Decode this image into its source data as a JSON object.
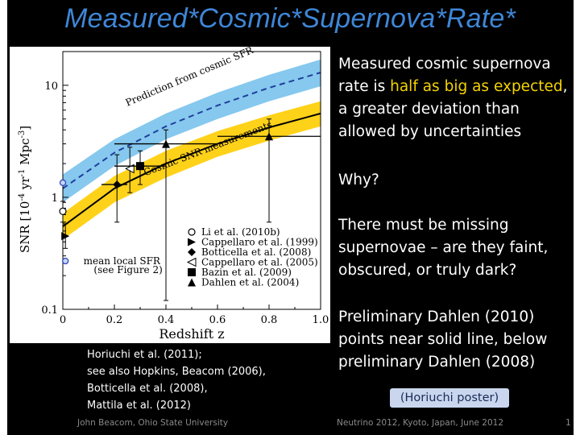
{
  "slide": {
    "title": "Measured*Cosmic*Supernova*Rate*",
    "paragraphs": {
      "p1_before": "Measured cosmic supernova rate is ",
      "p1_highlight": "half as big as expected",
      "p1_after": ", a greater deviation than allowed by uncertainties",
      "p2": "Why?",
      "p3": "There must be missing supernovae – are they faint, obscured, or truly dark?",
      "p4": "Preliminary Dahlen (2010) points near solid line, below preliminary Dahlen (2008)"
    },
    "poster_badge": "(Horiuchi poster)",
    "references": [
      "Horiuchi et al. (2011);",
      "see also Hopkins, Beacom (2006),",
      "Botticella et al. (2008),",
      "Mattila et al. (2012)"
    ],
    "footer": {
      "author": "John Beacom, Ohio State University",
      "event": "Neutrino 2012, Kyoto, Japan, June 2012",
      "page": "1"
    },
    "colors": {
      "title": "#3f86d6",
      "highlight": "#f5d300",
      "band_prediction": "#86c8ee",
      "band_measurement": "#ffd21a",
      "dashed_line": "#1f3e9c"
    }
  },
  "chart_data": {
    "type": "scatter",
    "xlabel": "Redshift z",
    "ylabel": "SNR [10^-4 yr^-1 Mpc^-3]",
    "ylabel_parts": {
      "a": "SNR [10",
      "b": "-4",
      "c": " yr",
      "d": "-1",
      "e": " Mpc",
      "f": "-3",
      "g": "]"
    },
    "xlim": [
      0,
      1.0
    ],
    "ylim": [
      0.1,
      20
    ],
    "yscale": "log",
    "x_ticks": [
      "0",
      "0.2",
      "0.4",
      "0.6",
      "0.8",
      "1.0"
    ],
    "y_ticks": [
      "0.1",
      "1",
      "10"
    ],
    "annotations": {
      "prediction": "Prediction from cosmic SFR",
      "measurement": "Cosmic SNR measurements",
      "local_sfr_1": "mean local SFR",
      "local_sfr_2": "(see Figure 2)"
    },
    "legend_position": "bottom-right",
    "legend": [
      {
        "name": "Li et al. (2010b)",
        "marker": "open-circle"
      },
      {
        "name": "Cappellaro et al. (1999)",
        "marker": "filled-triangle-right"
      },
      {
        "name": "Botticella et al. (2008)",
        "marker": "filled-diamond"
      },
      {
        "name": "Cappellaro et al. (2005)",
        "marker": "open-triangle-left"
      },
      {
        "name": "Bazin et al. (2009)",
        "marker": "filled-square"
      },
      {
        "name": "Dahlen et al. (2004)",
        "marker": "filled-triangle-up"
      }
    ],
    "prediction_band": {
      "x": [
        0,
        0.2,
        0.4,
        0.6,
        0.8,
        1.0
      ],
      "center": [
        1.2,
        2.5,
        4.3,
        6.6,
        9.5,
        13.0
      ],
      "lower": [
        0.9,
        1.9,
        3.3,
        5.0,
        7.2,
        9.8
      ],
      "upper": [
        1.6,
        3.3,
        5.6,
        8.6,
        12.4,
        17.0
      ]
    },
    "measurement_band": {
      "x": [
        0,
        0.2,
        0.4,
        0.6,
        0.8,
        1.0
      ],
      "center": [
        0.55,
        1.2,
        2.0,
        3.0,
        4.2,
        5.6
      ],
      "lower": [
        0.42,
        0.9,
        1.5,
        2.3,
        3.2,
        4.3
      ],
      "upper": [
        0.72,
        1.55,
        2.6,
        3.9,
        5.4,
        7.2
      ]
    },
    "points": [
      {
        "series": "Li et al. (2010b)",
        "marker": "open-circle",
        "x": 0.0,
        "y": 0.75,
        "ylo": 0.6,
        "yhi": 0.92
      },
      {
        "series": "Cappellaro et al. (1999)",
        "marker": "filled-triangle-right",
        "x": 0.01,
        "y": 0.45,
        "ylo": 0.35,
        "yhi": 0.58
      },
      {
        "series": "Botticella et al. (2008)",
        "marker": "filled-diamond",
        "x": 0.21,
        "y": 1.3,
        "ylo": 0.6,
        "yhi": 2.4,
        "xlo": 0.15,
        "xhi": 0.25
      },
      {
        "series": "Cappellaro et al. (2005)",
        "marker": "open-triangle-left",
        "x": 0.26,
        "y": 1.8,
        "ylo": 1.1,
        "yhi": 2.8
      },
      {
        "series": "Bazin et al. (2009)",
        "marker": "filled-square",
        "x": 0.3,
        "y": 1.9,
        "ylo": 1.3,
        "yhi": 2.6,
        "xlo": 0.2,
        "xhi": 0.4
      },
      {
        "series": "Dahlen et al. (2004)",
        "marker": "filled-triangle-up",
        "x": 0.4,
        "y": 3.0,
        "ylo": 0.12,
        "yhi": 4.0,
        "xlo": 0.2,
        "xhi": 0.6
      },
      {
        "series": "Dahlen et al. (2004)",
        "marker": "filled-triangle-up",
        "x": 0.8,
        "y": 3.5,
        "ylo": 0.6,
        "yhi": 5.0,
        "xlo": 0.6,
        "xhi": 1.0
      },
      {
        "series": "mean local SFR",
        "marker": "open-circle-blue",
        "x": 0.0,
        "y": 1.35
      },
      {
        "series": "mean local SFR",
        "marker": "open-circle-blue",
        "x": 0.01,
        "y": 0.27
      }
    ]
  }
}
